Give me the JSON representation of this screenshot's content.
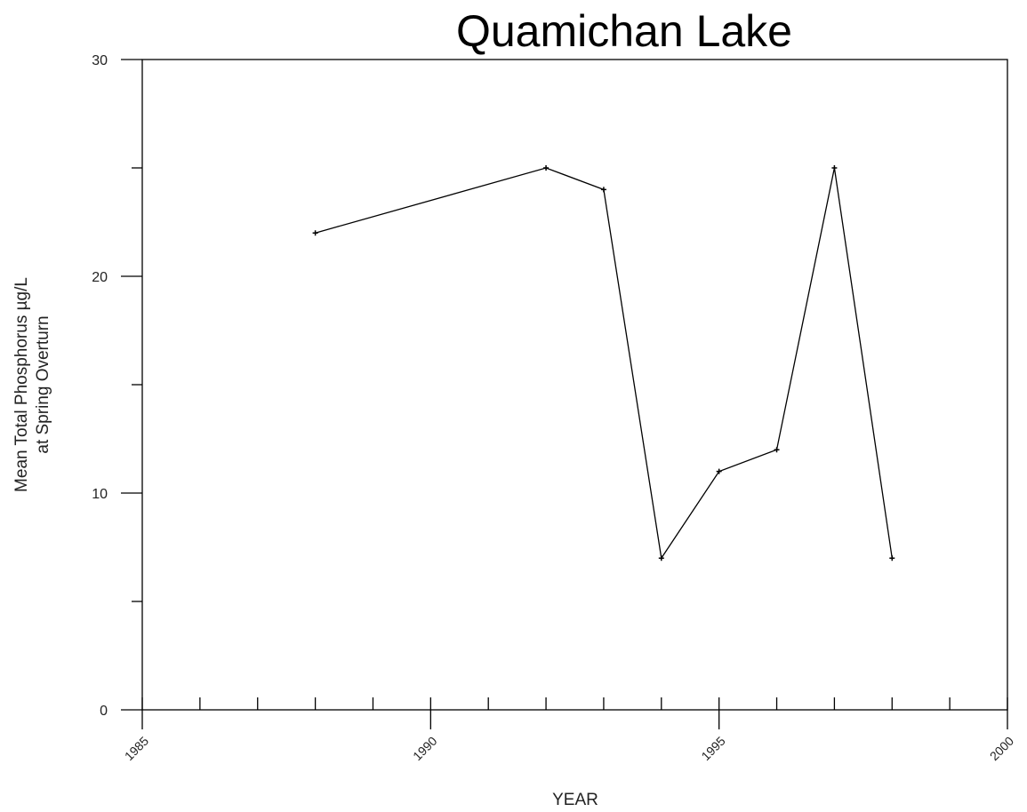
{
  "chart_data": {
    "type": "line",
    "title": "Quamichan Lake",
    "xlabel": "YEAR",
    "ylabel": [
      "Mean Total Phosphorus µg/L",
      "at Spring Overturn"
    ],
    "x": [
      1988,
      1992,
      1993,
      1994,
      1995,
      1996,
      1997,
      1998
    ],
    "values": [
      22,
      25,
      24,
      7,
      11,
      12,
      25,
      7
    ],
    "color": "#000000",
    "xlim": [
      1985,
      2000
    ],
    "xticks": [
      1985,
      1990,
      1995,
      2000
    ],
    "xminorticks": [
      1986,
      1987,
      1988,
      1989,
      1991,
      1992,
      1993,
      1994,
      1996,
      1997,
      1998,
      1999
    ],
    "ylim": [
      0,
      30
    ],
    "yticks": [
      0,
      10,
      20,
      30
    ],
    "yminorticks": [
      5,
      15,
      25
    ]
  }
}
